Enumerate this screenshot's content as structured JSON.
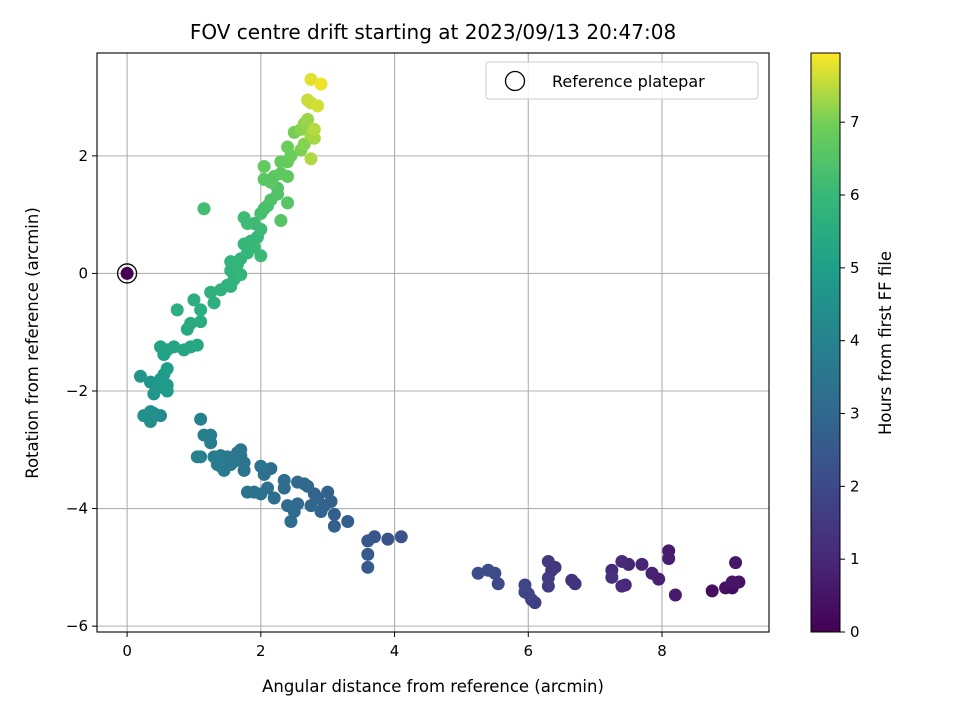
{
  "chart_data": {
    "type": "scatter",
    "title": "FOV centre drift starting at 2023/09/13 20:47:08",
    "xlabel": "Angular distance from reference (arcmin)",
    "ylabel": "Rotation from reference (arcmin)",
    "xlim": [
      -0.45,
      9.6
    ],
    "ylim": [
      -6.1,
      3.75
    ],
    "xticks": [
      0,
      2,
      4,
      6,
      8
    ],
    "yticks": [
      -6,
      -4,
      -2,
      0,
      2
    ],
    "grid": true,
    "legend": {
      "position": "top-right",
      "entries": [
        "Reference platepar"
      ]
    },
    "colorbar": {
      "label": "Hours from first FF file",
      "min": 0,
      "max": 7.95,
      "ticks": [
        0,
        1,
        2,
        3,
        4,
        5,
        6,
        7
      ],
      "colormap": "viridis"
    },
    "reference_point": {
      "x": 0,
      "y": 0,
      "hours": 0
    },
    "points": [
      {
        "x": 8.75,
        "y": -5.4,
        "h": 0.3
      },
      {
        "x": 8.95,
        "y": -5.35,
        "h": 0.4
      },
      {
        "x": 9.05,
        "y": -5.35,
        "h": 0.35
      },
      {
        "x": 9.15,
        "y": -5.25,
        "h": 0.45
      },
      {
        "x": 9.05,
        "y": -5.25,
        "h": 0.5
      },
      {
        "x": 9.1,
        "y": -4.92,
        "h": 0.55
      },
      {
        "x": 8.2,
        "y": -5.47,
        "h": 0.65
      },
      {
        "x": 8.1,
        "y": -4.72,
        "h": 0.7
      },
      {
        "x": 8.1,
        "y": -4.85,
        "h": 0.75
      },
      {
        "x": 7.95,
        "y": -5.2,
        "h": 0.8
      },
      {
        "x": 7.85,
        "y": -5.1,
        "h": 0.85
      },
      {
        "x": 7.7,
        "y": -4.95,
        "h": 0.9
      },
      {
        "x": 7.5,
        "y": -4.95,
        "h": 0.95
      },
      {
        "x": 7.45,
        "y": -5.3,
        "h": 1.0
      },
      {
        "x": 7.4,
        "y": -5.32,
        "h": 1.05
      },
      {
        "x": 7.4,
        "y": -4.9,
        "h": 1.1
      },
      {
        "x": 7.25,
        "y": -5.05,
        "h": 1.15
      },
      {
        "x": 7.25,
        "y": -5.17,
        "h": 1.2
      },
      {
        "x": 6.7,
        "y": -5.28,
        "h": 1.3
      },
      {
        "x": 6.65,
        "y": -5.22,
        "h": 1.35
      },
      {
        "x": 6.4,
        "y": -5.0,
        "h": 1.4
      },
      {
        "x": 6.35,
        "y": -5.05,
        "h": 1.45
      },
      {
        "x": 6.3,
        "y": -4.9,
        "h": 1.5
      },
      {
        "x": 6.3,
        "y": -5.18,
        "h": 1.55
      },
      {
        "x": 6.3,
        "y": -5.32,
        "h": 1.6
      },
      {
        "x": 6.1,
        "y": -5.6,
        "h": 1.7
      },
      {
        "x": 6.05,
        "y": -5.55,
        "h": 1.75
      },
      {
        "x": 6.0,
        "y": -5.45,
        "h": 1.8
      },
      {
        "x": 5.95,
        "y": -5.42,
        "h": 1.85
      },
      {
        "x": 5.95,
        "y": -5.3,
        "h": 1.9
      },
      {
        "x": 5.55,
        "y": -5.28,
        "h": 2.0
      },
      {
        "x": 5.5,
        "y": -5.1,
        "h": 2.05
      },
      {
        "x": 5.4,
        "y": -5.05,
        "h": 2.1
      },
      {
        "x": 5.25,
        "y": -5.1,
        "h": 2.15
      },
      {
        "x": 4.1,
        "y": -4.48,
        "h": 2.3
      },
      {
        "x": 3.9,
        "y": -4.52,
        "h": 2.35
      },
      {
        "x": 3.7,
        "y": -4.48,
        "h": 2.4
      },
      {
        "x": 3.6,
        "y": -4.55,
        "h": 2.45
      },
      {
        "x": 3.6,
        "y": -4.78,
        "h": 2.5
      },
      {
        "x": 3.6,
        "y": -5.0,
        "h": 2.55
      },
      {
        "x": 3.3,
        "y": -4.22,
        "h": 2.65
      },
      {
        "x": 3.1,
        "y": -4.3,
        "h": 2.7
      },
      {
        "x": 3.1,
        "y": -4.1,
        "h": 2.72
      },
      {
        "x": 3.05,
        "y": -3.88,
        "h": 2.75
      },
      {
        "x": 3.0,
        "y": -3.72,
        "h": 2.78
      },
      {
        "x": 2.95,
        "y": -3.95,
        "h": 2.8
      },
      {
        "x": 2.9,
        "y": -4.05,
        "h": 2.85
      },
      {
        "x": 2.85,
        "y": -3.82,
        "h": 2.88
      },
      {
        "x": 2.8,
        "y": -3.75,
        "h": 2.9
      },
      {
        "x": 2.75,
        "y": -3.95,
        "h": 2.95
      },
      {
        "x": 2.7,
        "y": -3.62,
        "h": 3.0
      },
      {
        "x": 2.65,
        "y": -3.58,
        "h": 3.02
      },
      {
        "x": 2.55,
        "y": -3.55,
        "h": 3.05
      },
      {
        "x": 2.55,
        "y": -3.92,
        "h": 3.08
      },
      {
        "x": 2.5,
        "y": -4.05,
        "h": 3.1
      },
      {
        "x": 2.45,
        "y": -4.22,
        "h": 3.12
      },
      {
        "x": 2.4,
        "y": -3.95,
        "h": 3.15
      },
      {
        "x": 2.35,
        "y": -3.65,
        "h": 3.18
      },
      {
        "x": 2.35,
        "y": -3.52,
        "h": 3.2
      },
      {
        "x": 2.2,
        "y": -3.82,
        "h": 3.25
      },
      {
        "x": 2.1,
        "y": -3.65,
        "h": 3.28
      },
      {
        "x": 2.15,
        "y": -3.32,
        "h": 3.3
      },
      {
        "x": 2.05,
        "y": -3.42,
        "h": 3.33
      },
      {
        "x": 2.0,
        "y": -3.28,
        "h": 3.35
      },
      {
        "x": 2.0,
        "y": -3.75,
        "h": 3.38
      },
      {
        "x": 1.9,
        "y": -3.72,
        "h": 3.4
      },
      {
        "x": 1.8,
        "y": -3.72,
        "h": 3.42
      },
      {
        "x": 1.75,
        "y": -3.35,
        "h": 3.45
      },
      {
        "x": 1.75,
        "y": -3.22,
        "h": 3.48
      },
      {
        "x": 1.7,
        "y": -3.1,
        "h": 3.5
      },
      {
        "x": 1.7,
        "y": -3.0,
        "h": 3.52
      },
      {
        "x": 1.65,
        "y": -3.05,
        "h": 3.55
      },
      {
        "x": 1.6,
        "y": -3.2,
        "h": 3.58
      },
      {
        "x": 1.55,
        "y": -3.25,
        "h": 3.6
      },
      {
        "x": 1.5,
        "y": -3.12,
        "h": 3.62
      },
      {
        "x": 1.45,
        "y": -3.35,
        "h": 3.65
      },
      {
        "x": 1.4,
        "y": -3.28,
        "h": 3.68
      },
      {
        "x": 1.4,
        "y": -3.1,
        "h": 3.7
      },
      {
        "x": 1.35,
        "y": -3.25,
        "h": 3.72
      },
      {
        "x": 1.3,
        "y": -3.12,
        "h": 3.75
      },
      {
        "x": 1.25,
        "y": -2.75,
        "h": 3.8
      },
      {
        "x": 1.25,
        "y": -2.88,
        "h": 3.82
      },
      {
        "x": 1.15,
        "y": -2.75,
        "h": 3.85
      },
      {
        "x": 1.1,
        "y": -2.48,
        "h": 3.9
      },
      {
        "x": 1.1,
        "y": -3.12,
        "h": 3.92
      },
      {
        "x": 1.05,
        "y": -3.12,
        "h": 3.95
      },
      {
        "x": 0.5,
        "y": -2.42,
        "h": 4.3
      },
      {
        "x": 0.4,
        "y": -2.38,
        "h": 4.35
      },
      {
        "x": 0.35,
        "y": -2.52,
        "h": 4.4
      },
      {
        "x": 0.35,
        "y": -2.35,
        "h": 4.45
      },
      {
        "x": 0.25,
        "y": -2.42,
        "h": 4.5
      },
      {
        "x": 0.2,
        "y": -1.75,
        "h": 4.6
      },
      {
        "x": 0.35,
        "y": -1.85,
        "h": 4.65
      },
      {
        "x": 0.4,
        "y": -2.05,
        "h": 4.7
      },
      {
        "x": 0.45,
        "y": -1.95,
        "h": 4.75
      },
      {
        "x": 0.5,
        "y": -1.8,
        "h": 4.8
      },
      {
        "x": 0.55,
        "y": -1.72,
        "h": 4.85
      },
      {
        "x": 0.6,
        "y": -1.9,
        "h": 4.9
      },
      {
        "x": 0.6,
        "y": -2.0,
        "h": 4.95
      },
      {
        "x": 0.6,
        "y": -1.62,
        "h": 5.0
      },
      {
        "x": 0.55,
        "y": -1.38,
        "h": 5.05
      },
      {
        "x": 0.5,
        "y": -1.25,
        "h": 5.1
      },
      {
        "x": 0.6,
        "y": -1.3,
        "h": 5.15
      },
      {
        "x": 0.7,
        "y": -1.25,
        "h": 5.2
      },
      {
        "x": 0.85,
        "y": -1.3,
        "h": 5.25
      },
      {
        "x": 0.95,
        "y": -1.25,
        "h": 5.3
      },
      {
        "x": 1.05,
        "y": -1.22,
        "h": 5.35
      },
      {
        "x": 0.9,
        "y": -0.95,
        "h": 5.4
      },
      {
        "x": 0.95,
        "y": -0.85,
        "h": 5.45
      },
      {
        "x": 1.1,
        "y": -0.82,
        "h": 5.5
      },
      {
        "x": 1.1,
        "y": -0.62,
        "h": 5.55
      },
      {
        "x": 0.75,
        "y": -0.62,
        "h": 5.6
      },
      {
        "x": 1.0,
        "y": -0.45,
        "h": 5.62
      },
      {
        "x": 1.3,
        "y": -0.5,
        "h": 5.65
      },
      {
        "x": 1.25,
        "y": -0.32,
        "h": 5.68
      },
      {
        "x": 1.4,
        "y": -0.28,
        "h": 5.7
      },
      {
        "x": 1.5,
        "y": -0.2,
        "h": 5.72
      },
      {
        "x": 1.55,
        "y": -0.22,
        "h": 5.75
      },
      {
        "x": 1.6,
        "y": -0.1,
        "h": 5.78
      },
      {
        "x": 1.55,
        "y": 0.05,
        "h": 5.8
      },
      {
        "x": 1.55,
        "y": 0.2,
        "h": 5.82
      },
      {
        "x": 1.65,
        "y": 0.15,
        "h": 5.85
      },
      {
        "x": 1.7,
        "y": 0.25,
        "h": 5.88
      },
      {
        "x": 1.7,
        "y": -0.02,
        "h": 5.9
      },
      {
        "x": 1.75,
        "y": 0.5,
        "h": 5.92
      },
      {
        "x": 1.8,
        "y": 0.35,
        "h": 5.95
      },
      {
        "x": 1.85,
        "y": 0.55,
        "h": 5.98
      },
      {
        "x": 1.9,
        "y": 0.45,
        "h": 6.0
      },
      {
        "x": 1.95,
        "y": 0.62,
        "h": 6.02
      },
      {
        "x": 2.0,
        "y": 0.3,
        "h": 6.05
      },
      {
        "x": 2.0,
        "y": 0.75,
        "h": 6.08
      },
      {
        "x": 1.9,
        "y": 0.85,
        "h": 6.1
      },
      {
        "x": 1.8,
        "y": 0.85,
        "h": 6.12
      },
      {
        "x": 1.75,
        "y": 0.95,
        "h": 6.15
      },
      {
        "x": 1.15,
        "y": 1.1,
        "h": 6.2
      },
      {
        "x": 2.0,
        "y": 1.02,
        "h": 6.25
      },
      {
        "x": 2.05,
        "y": 1.1,
        "h": 6.3
      },
      {
        "x": 2.1,
        "y": 1.15,
        "h": 6.35
      },
      {
        "x": 2.15,
        "y": 1.25,
        "h": 6.4
      },
      {
        "x": 2.25,
        "y": 1.35,
        "h": 6.45
      },
      {
        "x": 2.25,
        "y": 1.45,
        "h": 6.5
      },
      {
        "x": 2.3,
        "y": 0.9,
        "h": 6.52
      },
      {
        "x": 2.4,
        "y": 1.2,
        "h": 6.55
      },
      {
        "x": 2.05,
        "y": 1.6,
        "h": 6.6
      },
      {
        "x": 2.15,
        "y": 1.55,
        "h": 6.62
      },
      {
        "x": 2.2,
        "y": 1.65,
        "h": 6.65
      },
      {
        "x": 2.3,
        "y": 1.7,
        "h": 6.68
      },
      {
        "x": 2.4,
        "y": 1.65,
        "h": 6.7
      },
      {
        "x": 2.05,
        "y": 1.82,
        "h": 6.75
      },
      {
        "x": 2.3,
        "y": 1.9,
        "h": 6.78
      },
      {
        "x": 2.4,
        "y": 1.9,
        "h": 6.8
      },
      {
        "x": 2.45,
        "y": 2.0,
        "h": 6.85
      },
      {
        "x": 2.4,
        "y": 2.15,
        "h": 6.9
      },
      {
        "x": 2.5,
        "y": 2.4,
        "h": 7.0
      },
      {
        "x": 2.6,
        "y": 2.1,
        "h": 7.05
      },
      {
        "x": 2.65,
        "y": 2.2,
        "h": 7.1
      },
      {
        "x": 2.6,
        "y": 2.45,
        "h": 7.15
      },
      {
        "x": 2.65,
        "y": 2.55,
        "h": 7.2
      },
      {
        "x": 2.7,
        "y": 2.62,
        "h": 7.25
      },
      {
        "x": 2.75,
        "y": 2.35,
        "h": 7.3
      },
      {
        "x": 2.8,
        "y": 2.3,
        "h": 7.35
      },
      {
        "x": 2.75,
        "y": 1.95,
        "h": 7.4
      },
      {
        "x": 2.8,
        "y": 2.45,
        "h": 7.45
      },
      {
        "x": 2.7,
        "y": 2.95,
        "h": 7.55
      },
      {
        "x": 2.75,
        "y": 2.9,
        "h": 7.6
      },
      {
        "x": 2.85,
        "y": 2.85,
        "h": 7.65
      },
      {
        "x": 2.75,
        "y": 3.3,
        "h": 7.75
      },
      {
        "x": 2.9,
        "y": 3.22,
        "h": 7.85
      }
    ]
  }
}
